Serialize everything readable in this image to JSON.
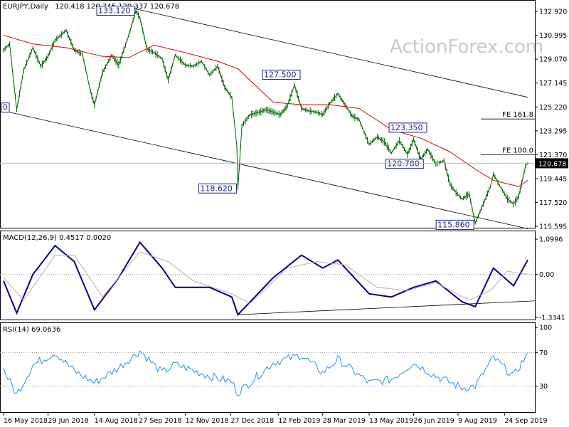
{
  "chart_data": [
    {
      "type": "candlestick",
      "symbol_label": "EURJPY,Daily",
      "ohlc_label": "120.418 120.745 120.337 120.678",
      "watermark": "ActionForex.com",
      "ylim": [
        115.595,
        133.5
      ],
      "y_ticks": [
        "132.920",
        "130.995",
        "129.070",
        "127.145",
        "125.220",
        "123.295",
        "121.370",
        "119.445",
        "117.520",
        "115.595"
      ],
      "last_price": 120.678,
      "last_price_label": "120.678",
      "price_points": [
        [
          "2018-05-16",
          129.8
        ],
        [
          "2018-05-22",
          130.3
        ],
        [
          "2018-05-29",
          125.0
        ],
        [
          "2018-06-05",
          128.2
        ],
        [
          "2018-06-14",
          130.0
        ],
        [
          "2018-06-22",
          128.5
        ],
        [
          "2018-06-29",
          129.3
        ],
        [
          "2018-07-06",
          130.6
        ],
        [
          "2018-07-17",
          131.4
        ],
        [
          "2018-07-25",
          129.8
        ],
        [
          "2018-08-02",
          129.5
        ],
        [
          "2018-08-10",
          126.5
        ],
        [
          "2018-08-14",
          125.4
        ],
        [
          "2018-08-22",
          128.0
        ],
        [
          "2018-08-31",
          129.4
        ],
        [
          "2018-09-07",
          128.6
        ],
        [
          "2018-09-17",
          131.0
        ],
        [
          "2018-09-24",
          133.0
        ],
        [
          "2018-09-28",
          132.4
        ],
        [
          "2018-10-05",
          129.9
        ],
        [
          "2018-10-12",
          129.6
        ],
        [
          "2018-10-20",
          129.1
        ],
        [
          "2018-10-26",
          127.4
        ],
        [
          "2018-11-02",
          129.4
        ],
        [
          "2018-11-12",
          128.6
        ],
        [
          "2018-11-20",
          128.5
        ],
        [
          "2018-11-28",
          128.9
        ],
        [
          "2018-12-06",
          127.8
        ],
        [
          "2018-12-14",
          128.5
        ],
        [
          "2018-12-21",
          126.8
        ],
        [
          "2018-12-28",
          126.0
        ],
        [
          "2019-01-02",
          122.0
        ],
        [
          "2019-01-03",
          118.62
        ],
        [
          "2019-01-07",
          123.7
        ],
        [
          "2019-01-15",
          124.6
        ],
        [
          "2019-01-24",
          124.8
        ],
        [
          "2019-01-31",
          125.0
        ],
        [
          "2019-02-07",
          124.8
        ],
        [
          "2019-02-14",
          124.6
        ],
        [
          "2019-02-21",
          125.3
        ],
        [
          "2019-02-28",
          127.0
        ],
        [
          "2019-03-07",
          125.1
        ],
        [
          "2019-03-14",
          124.9
        ],
        [
          "2019-03-22",
          124.8
        ],
        [
          "2019-03-28",
          124.6
        ],
        [
          "2019-04-04",
          125.5
        ],
        [
          "2019-04-12",
          126.3
        ],
        [
          "2019-04-19",
          125.4
        ],
        [
          "2019-04-26",
          124.5
        ],
        [
          "2019-05-03",
          124.2
        ],
        [
          "2019-05-13",
          122.2
        ],
        [
          "2019-05-21",
          122.8
        ],
        [
          "2019-05-28",
          122.4
        ],
        [
          "2019-06-04",
          121.5
        ],
        [
          "2019-06-12",
          122.5
        ],
        [
          "2019-06-20",
          121.4
        ],
        [
          "2019-06-26",
          122.6
        ],
        [
          "2019-07-03",
          121.0
        ],
        [
          "2019-07-10",
          121.8
        ],
        [
          "2019-07-18",
          120.6
        ],
        [
          "2019-07-26",
          120.9
        ],
        [
          "2019-08-01",
          119.0
        ],
        [
          "2019-08-07",
          118.3
        ],
        [
          "2019-08-13",
          117.8
        ],
        [
          "2019-08-20",
          118.2
        ],
        [
          "2019-08-26",
          115.86
        ],
        [
          "2019-09-03",
          117.4
        ],
        [
          "2019-09-10",
          118.8
        ],
        [
          "2019-09-13",
          119.8
        ],
        [
          "2019-09-19",
          118.9
        ],
        [
          "2019-09-27",
          117.8
        ],
        [
          "2019-10-03",
          117.4
        ],
        [
          "2019-10-08",
          118.0
        ],
        [
          "2019-10-15",
          120.5
        ],
        [
          "2019-10-17",
          120.678
        ]
      ],
      "ma_points": [
        [
          "2018-05-16",
          131.0
        ],
        [
          "2018-06-14",
          130.3
        ],
        [
          "2018-07-17",
          130.0
        ],
        [
          "2018-08-22",
          129.3
        ],
        [
          "2018-09-17",
          129.2
        ],
        [
          "2018-10-12",
          130.2
        ],
        [
          "2018-11-12",
          129.6
        ],
        [
          "2018-12-14",
          128.9
        ],
        [
          "2019-01-03",
          128.3
        ],
        [
          "2019-02-07",
          125.6
        ],
        [
          "2019-03-07",
          125.4
        ],
        [
          "2019-04-04",
          125.4
        ],
        [
          "2019-05-03",
          125.1
        ],
        [
          "2019-06-04",
          123.4
        ],
        [
          "2019-07-03",
          122.7
        ],
        [
          "2019-08-01",
          121.6
        ],
        [
          "2019-08-26",
          120.2
        ],
        [
          "2019-09-13",
          119.3
        ],
        [
          "2019-10-08",
          118.8
        ],
        [
          "2019-10-17",
          119.3
        ]
      ],
      "annotations": [
        {
          "label": "133.120",
          "date": "2018-09-24",
          "value": 133.12
        },
        {
          "label": "127.500",
          "date": "2019-02-28",
          "value": 127.5
        },
        {
          "label": "118.620",
          "date": "2019-01-03",
          "value": 118.62
        },
        {
          "label": "123.350",
          "date": "2019-06-20",
          "value": 123.35
        },
        {
          "label": "120.780",
          "date": "2019-06-04",
          "value": 120.78
        },
        {
          "label": "115.860",
          "date": "2019-08-26",
          "value": 115.86
        },
        {
          "label": "0",
          "date": "2018-05-16",
          "value": 125.2
        }
      ],
      "fib_levels": [
        {
          "label": "FE 161.8",
          "value": 124.25
        },
        {
          "label": "FE 100.0",
          "value": 121.37
        }
      ],
      "channel_lines": [
        {
          "from": [
            "2018-09-24",
            133.12
          ],
          "to": [
            "2019-10-17",
            126.0
          ]
        },
        {
          "from": [
            "2018-05-16",
            124.9
          ],
          "to": [
            "2019-10-17",
            115.4
          ]
        }
      ]
    },
    {
      "type": "line",
      "title": "MACD(12,26,9) 0.4517 0.0020",
      "ylim": [
        -1.3341,
        1.0996
      ],
      "y_ticks": [
        "1.0996",
        "0.00",
        "-1.3341"
      ],
      "series": [
        {
          "name": "MACD",
          "values": [
            [
              "2018-05-16",
              -0.2
            ],
            [
              "2018-05-29",
              -1.2
            ],
            [
              "2018-06-14",
              0.0
            ],
            [
              "2018-07-06",
              0.9
            ],
            [
              "2018-07-25",
              0.4
            ],
            [
              "2018-08-14",
              -1.1
            ],
            [
              "2018-09-07",
              -0.1
            ],
            [
              "2018-09-28",
              1.0
            ],
            [
              "2018-10-20",
              0.2
            ],
            [
              "2018-11-02",
              -0.4
            ],
            [
              "2018-12-06",
              -0.4
            ],
            [
              "2018-12-28",
              -0.7
            ],
            [
              "2019-01-03",
              -1.25
            ],
            [
              "2019-02-07",
              -0.1
            ],
            [
              "2019-03-07",
              0.6
            ],
            [
              "2019-03-28",
              0.2
            ],
            [
              "2019-04-12",
              0.45
            ],
            [
              "2019-05-13",
              -0.6
            ],
            [
              "2019-06-04",
              -0.7
            ],
            [
              "2019-06-26",
              -0.4
            ],
            [
              "2019-07-18",
              -0.2
            ],
            [
              "2019-08-13",
              -0.85
            ],
            [
              "2019-08-26",
              -1.0
            ],
            [
              "2019-09-13",
              0.2
            ],
            [
              "2019-10-03",
              -0.35
            ],
            [
              "2019-10-17",
              0.4517
            ]
          ]
        },
        {
          "name": "Signal",
          "values": [
            [
              "2018-05-16",
              -0.1
            ],
            [
              "2018-06-05",
              -0.8
            ],
            [
              "2018-07-06",
              0.6
            ],
            [
              "2018-07-25",
              0.6
            ],
            [
              "2018-08-22",
              -0.7
            ],
            [
              "2018-09-28",
              0.7
            ],
            [
              "2018-10-26",
              0.4
            ],
            [
              "2018-11-20",
              -0.2
            ],
            [
              "2018-12-28",
              -0.6
            ],
            [
              "2019-01-15",
              -0.9
            ],
            [
              "2019-02-21",
              0.2
            ],
            [
              "2019-03-22",
              0.4
            ],
            [
              "2019-04-19",
              0.3
            ],
            [
              "2019-05-21",
              -0.4
            ],
            [
              "2019-06-20",
              -0.5
            ],
            [
              "2019-07-18",
              -0.25
            ],
            [
              "2019-08-20",
              -0.8
            ],
            [
              "2019-09-10",
              -0.5
            ],
            [
              "2019-09-27",
              0.1
            ],
            [
              "2019-10-17",
              0.002
            ]
          ]
        }
      ],
      "trendline": {
        "from": [
          "2019-01-03",
          -1.25
        ],
        "to": [
          "2019-10-17",
          -0.82
        ]
      }
    },
    {
      "type": "line",
      "title": "RSI(14) 69.0636",
      "ylim": [
        0,
        100
      ],
      "y_ticks": [
        "100",
        "70",
        "30",
        "0"
      ],
      "levels": [
        70,
        30
      ],
      "series": [
        {
          "name": "RSI",
          "values": [
            [
              "2018-05-16",
              50
            ],
            [
              "2018-05-29",
              20
            ],
            [
              "2018-06-14",
              55
            ],
            [
              "2018-07-06",
              70
            ],
            [
              "2018-07-25",
              48
            ],
            [
              "2018-08-14",
              34
            ],
            [
              "2018-09-07",
              52
            ],
            [
              "2018-09-28",
              72
            ],
            [
              "2018-10-20",
              46
            ],
            [
              "2018-11-02",
              56
            ],
            [
              "2018-12-06",
              42
            ],
            [
              "2018-12-28",
              35
            ],
            [
              "2019-01-03",
              22
            ],
            [
              "2019-02-07",
              58
            ],
            [
              "2019-03-07",
              67
            ],
            [
              "2019-03-28",
              46
            ],
            [
              "2019-04-12",
              62
            ],
            [
              "2019-05-13",
              34
            ],
            [
              "2019-06-04",
              38
            ],
            [
              "2019-06-26",
              58
            ],
            [
              "2019-07-18",
              42
            ],
            [
              "2019-08-13",
              28
            ],
            [
              "2019-08-26",
              30
            ],
            [
              "2019-09-13",
              64
            ],
            [
              "2019-10-03",
              42
            ],
            [
              "2019-10-17",
              69.06
            ]
          ]
        }
      ]
    }
  ],
  "x_axis": {
    "start": "2018-05-16",
    "end": "2019-10-17",
    "tick_labels": [
      {
        "date": "2018-05-16",
        "label": "16 May 2018"
      },
      {
        "date": "2018-06-29",
        "label": "29 Jun 2018"
      },
      {
        "date": "2018-08-14",
        "label": "14 Aug 2018"
      },
      {
        "date": "2018-09-27",
        "label": "27 Sep 2018"
      },
      {
        "date": "2018-11-12",
        "label": "12 Nov 2018"
      },
      {
        "date": "2018-12-27",
        "label": "27 Dec 2018"
      },
      {
        "date": "2019-02-12",
        "label": "12 Feb 2019"
      },
      {
        "date": "2019-03-28",
        "label": "28 Mar 2019"
      },
      {
        "date": "2019-05-13",
        "label": "13 May 2019"
      },
      {
        "date": "2019-06-26",
        "label": "26 Jun 2019"
      },
      {
        "date": "2019-08-09",
        "label": "9 Aug 2019"
      },
      {
        "date": "2019-09-24",
        "label": "24 Sep 2019"
      }
    ]
  },
  "colors": {
    "price": "#006400",
    "ma": "#e00000",
    "channel": "#000000",
    "macd": "#00008b",
    "signal": "#b0b0b0",
    "rsi": "#1e90ff",
    "annotation": "#1a237e"
  }
}
